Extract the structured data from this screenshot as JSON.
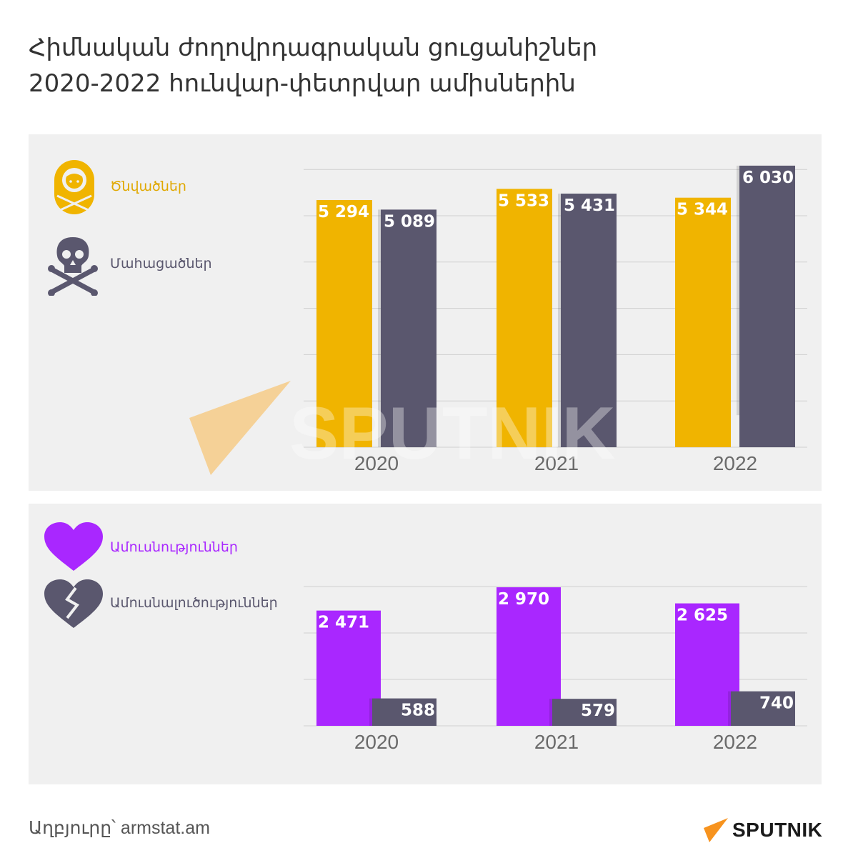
{
  "title": {
    "line1": "Հիմնական ժողովրդագրական ցուցանիշներ",
    "line2": "2020-2022 հունվար-փետրվար ամիսներին"
  },
  "legend_top": {
    "births_label": "Ծնվածներ",
    "deaths_label": "Մահացածներ"
  },
  "legend_bottom": {
    "marriages_label": "Ամուսնություններ",
    "divorces_label": "Ամուսնալուծություններ"
  },
  "colors": {
    "births": "#f0b400",
    "deaths": "#5a576e",
    "marriages": "#a927ff",
    "divorces": "#5a576e",
    "panel_bg": "#f0f0f0",
    "title": "#333333"
  },
  "chart_data": [
    {
      "type": "bar",
      "categories": [
        "2020",
        "2021",
        "2022"
      ],
      "series": [
        {
          "name": "Ծնվածներ",
          "values": [
            5294,
            5533,
            5344
          ],
          "labels": [
            "5 294",
            "5 533",
            "5 344"
          ]
        },
        {
          "name": "Մահացածներ",
          "values": [
            5089,
            5431,
            6030
          ],
          "labels": [
            "5 089",
            "5 431",
            "6 030"
          ]
        }
      ],
      "ylim": [
        0,
        6000
      ],
      "grid": true
    },
    {
      "type": "bar",
      "categories": [
        "2020",
        "2021",
        "2022"
      ],
      "series": [
        {
          "name": "Ամուսնություններ",
          "values": [
            2471,
            2970,
            2625
          ],
          "labels": [
            "2 471",
            "2 970",
            "2 625"
          ]
        },
        {
          "name": "Ամուսնալուծություններ",
          "values": [
            588,
            579,
            740
          ],
          "labels": [
            "588",
            "579",
            "740"
          ]
        }
      ],
      "ylim": [
        0,
        3000
      ],
      "grid": true
    }
  ],
  "source": "Աղբյուրը՝ armstat.am",
  "logo": {
    "text": "SPUTNIK"
  },
  "watermark": {
    "text": "SPUTNIK"
  }
}
